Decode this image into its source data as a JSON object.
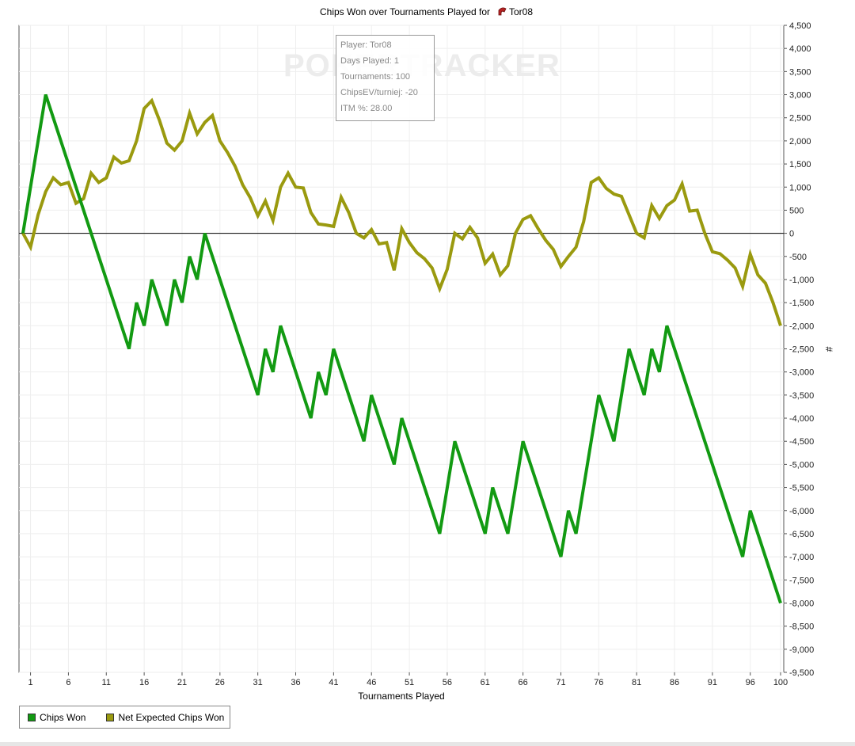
{
  "chart_data": {
    "type": "line",
    "title": "Chips Won over Tournaments Played for",
    "title_player": "Tor08",
    "xlabel": "Tournaments Played",
    "ylabel": "#",
    "xlim": [
      0,
      100
    ],
    "ylim": [
      -9500,
      4500
    ],
    "x_ticks": [
      1,
      6,
      11,
      16,
      21,
      26,
      31,
      36,
      41,
      46,
      51,
      56,
      61,
      66,
      71,
      76,
      81,
      86,
      91,
      96,
      100
    ],
    "y_ticks": [
      4500,
      4000,
      3500,
      3000,
      2500,
      2000,
      1500,
      1000,
      500,
      0,
      -500,
      -1000,
      -1500,
      -2000,
      -2500,
      -3000,
      -3500,
      -4000,
      -4500,
      -5000,
      -5500,
      -6000,
      -6500,
      -7000,
      -7500,
      -8000,
      -8500,
      -9000,
      -9500
    ],
    "y_tick_labels": [
      "4,500",
      "4,000",
      "3,500",
      "3,000",
      "2,500",
      "2,000",
      "1,500",
      "1,000",
      "500",
      "0",
      "-500",
      "-1,000",
      "-1,500",
      "-2,000",
      "-2,500",
      "-3,000",
      "-3,500",
      "-4,000",
      "-4,500",
      "-5,000",
      "-5,500",
      "-6,000",
      "-6,500",
      "-7,000",
      "-7,500",
      "-8,000",
      "-8,500",
      "-9,000",
      "-9,500"
    ],
    "grid": true,
    "legend_position": "bottom-left",
    "series": [
      {
        "name": "Chips Won",
        "color": "#129a12",
        "points": [
          [
            0,
            0
          ],
          [
            3,
            3000
          ],
          [
            14,
            -2500
          ],
          [
            15,
            -1500
          ],
          [
            16,
            -2000
          ],
          [
            17,
            -1000
          ],
          [
            19,
            -2000
          ],
          [
            20,
            -1000
          ],
          [
            21,
            -1500
          ],
          [
            22,
            -500
          ],
          [
            23,
            -1000
          ],
          [
            24,
            0
          ],
          [
            31,
            -3500
          ],
          [
            32,
            -2500
          ],
          [
            33,
            -3000
          ],
          [
            34,
            -2000
          ],
          [
            38,
            -4000
          ],
          [
            39,
            -3000
          ],
          [
            40,
            -3500
          ],
          [
            41,
            -2500
          ],
          [
            45,
            -4500
          ],
          [
            46,
            -3500
          ],
          [
            49,
            -5000
          ],
          [
            50,
            -4000
          ],
          [
            55,
            -6500
          ],
          [
            57,
            -4500
          ],
          [
            61,
            -6500
          ],
          [
            62,
            -5500
          ],
          [
            64,
            -6500
          ],
          [
            66,
            -4500
          ],
          [
            71,
            -7000
          ],
          [
            72,
            -6000
          ],
          [
            73,
            -6500
          ],
          [
            76,
            -3500
          ],
          [
            78,
            -4500
          ],
          [
            80,
            -2500
          ],
          [
            82,
            -3500
          ],
          [
            83,
            -2500
          ],
          [
            84,
            -3000
          ],
          [
            85,
            -2000
          ],
          [
            95,
            -7000
          ],
          [
            96,
            -6000
          ],
          [
            100,
            -8000
          ]
        ]
      },
      {
        "name": "Net Expected Chips Won",
        "color": "#9a9a0f",
        "points": [
          [
            0,
            0
          ],
          [
            1,
            -300
          ],
          [
            2,
            400
          ],
          [
            3,
            900
          ],
          [
            4,
            1200
          ],
          [
            5,
            1050
          ],
          [
            6,
            1100
          ],
          [
            7,
            650
          ],
          [
            8,
            750
          ],
          [
            9,
            1300
          ],
          [
            10,
            1100
          ],
          [
            11,
            1200
          ],
          [
            12,
            1650
          ],
          [
            13,
            1520
          ],
          [
            14,
            1570
          ],
          [
            15,
            2000
          ],
          [
            16,
            2700
          ],
          [
            17,
            2870
          ],
          [
            18,
            2450
          ],
          [
            19,
            1950
          ],
          [
            20,
            1800
          ],
          [
            21,
            2000
          ],
          [
            22,
            2600
          ],
          [
            23,
            2150
          ],
          [
            24,
            2400
          ],
          [
            25,
            2550
          ],
          [
            26,
            2000
          ],
          [
            27,
            1750
          ],
          [
            28,
            1450
          ],
          [
            29,
            1050
          ],
          [
            30,
            770
          ],
          [
            31,
            380
          ],
          [
            32,
            700
          ],
          [
            33,
            280
          ],
          [
            34,
            1000
          ],
          [
            35,
            1300
          ],
          [
            36,
            1000
          ],
          [
            37,
            980
          ],
          [
            38,
            450
          ],
          [
            39,
            200
          ],
          [
            40,
            180
          ],
          [
            41,
            150
          ],
          [
            42,
            780
          ],
          [
            43,
            450
          ],
          [
            44,
            0
          ],
          [
            45,
            -100
          ],
          [
            46,
            80
          ],
          [
            47,
            -230
          ],
          [
            48,
            -200
          ],
          [
            49,
            -800
          ],
          [
            50,
            100
          ],
          [
            51,
            -200
          ],
          [
            52,
            -420
          ],
          [
            53,
            -550
          ],
          [
            54,
            -750
          ],
          [
            55,
            -1200
          ],
          [
            56,
            -780
          ],
          [
            57,
            0
          ],
          [
            58,
            -120
          ],
          [
            59,
            130
          ],
          [
            60,
            -100
          ],
          [
            61,
            -650
          ],
          [
            62,
            -450
          ],
          [
            63,
            -900
          ],
          [
            64,
            -700
          ],
          [
            65,
            0
          ],
          [
            66,
            300
          ],
          [
            67,
            380
          ],
          [
            68,
            100
          ],
          [
            69,
            -150
          ],
          [
            70,
            -350
          ],
          [
            71,
            -720
          ],
          [
            72,
            -500
          ],
          [
            73,
            -300
          ],
          [
            74,
            250
          ],
          [
            75,
            1100
          ],
          [
            76,
            1200
          ],
          [
            77,
            970
          ],
          [
            78,
            850
          ],
          [
            79,
            800
          ],
          [
            80,
            400
          ],
          [
            81,
            0
          ],
          [
            82,
            -100
          ],
          [
            83,
            600
          ],
          [
            84,
            320
          ],
          [
            85,
            600
          ],
          [
            86,
            720
          ],
          [
            87,
            1070
          ],
          [
            88,
            480
          ],
          [
            89,
            500
          ],
          [
            90,
            0
          ],
          [
            91,
            -400
          ],
          [
            92,
            -440
          ],
          [
            93,
            -580
          ],
          [
            94,
            -750
          ],
          [
            95,
            -1150
          ],
          [
            96,
            -450
          ],
          [
            97,
            -900
          ],
          [
            98,
            -1080
          ],
          [
            99,
            -1500
          ],
          [
            100,
            -2000
          ]
        ]
      }
    ]
  },
  "info_box": {
    "player": "Player: Tor08",
    "days": "Days Played: 1",
    "tournaments": "Tournaments: 100",
    "chipsev": "ChipsEV/turniej: -20",
    "itm": "ITM %: 28.00"
  },
  "watermark": "POKERTRACKER",
  "legend": {
    "items": [
      {
        "label": "Chips Won",
        "color": "#129a12"
      },
      {
        "label": "Net Expected Chips Won",
        "color": "#9a9a0f"
      }
    ]
  }
}
